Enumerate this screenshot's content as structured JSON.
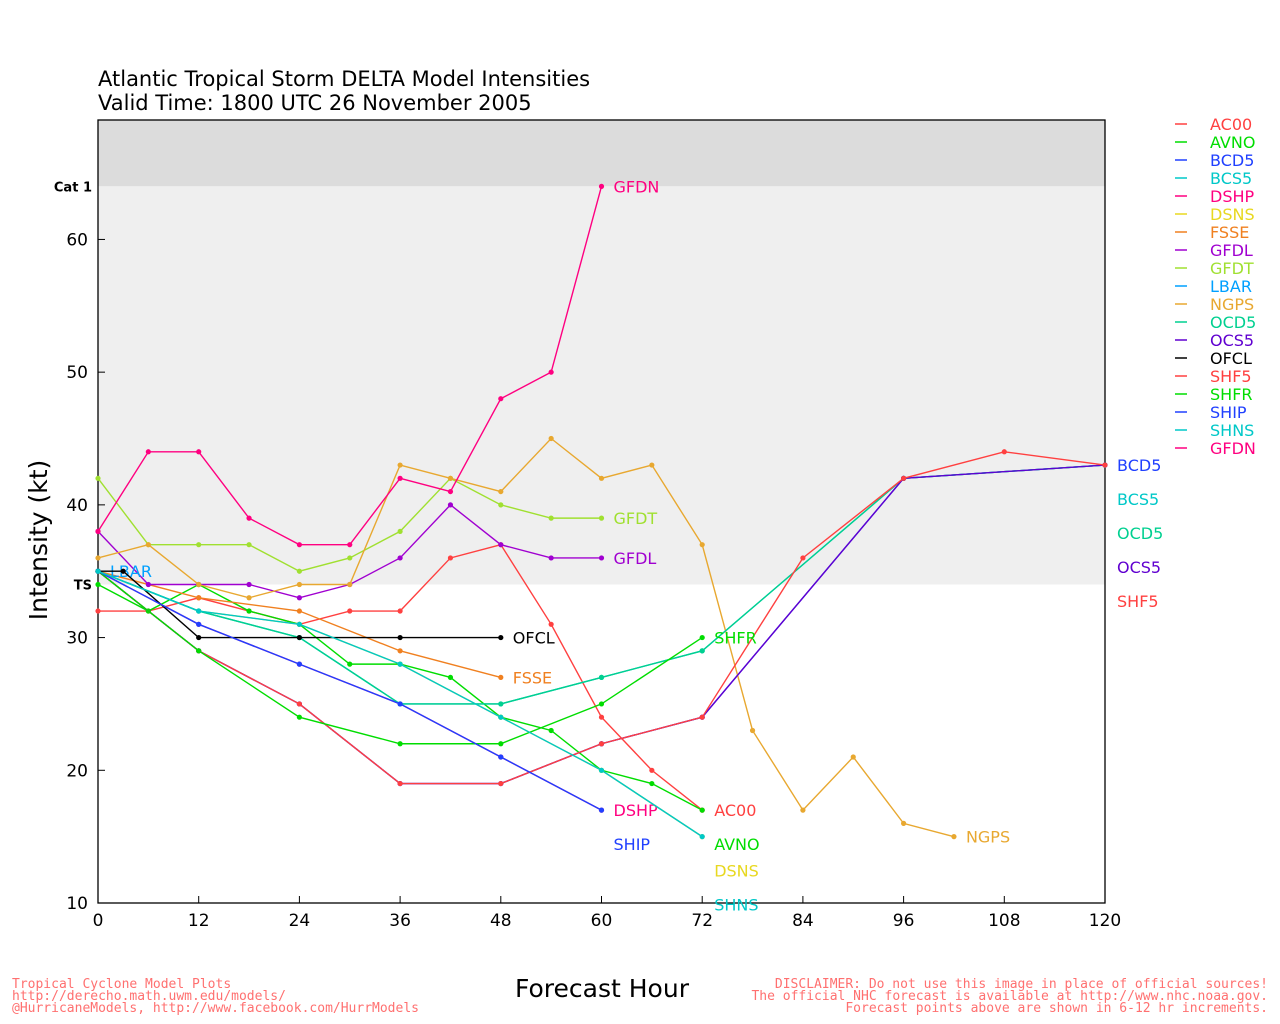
{
  "chart_data": {
    "type": "line",
    "title": "Atlantic Tropical Storm DELTA Model Intensities",
    "subtitle": "Valid Time: 1800 UTC 26 November 2005",
    "xlabel": "Forecast Hour",
    "ylabel": "Intensity (kt)",
    "xlim": [
      0,
      120
    ],
    "ylim": [
      10,
      69
    ],
    "xticks": [
      0,
      12,
      24,
      36,
      48,
      60,
      72,
      84,
      96,
      108,
      120
    ],
    "yticks": [
      10,
      20,
      30,
      40,
      50,
      60
    ],
    "thresholds": [
      {
        "label": "Cat 1",
        "value": 64
      },
      {
        "label": "TS",
        "value": 34
      }
    ],
    "legend_position": "right",
    "series": [
      {
        "name": "AC00",
        "color": "#ff4040",
        "x": [
          0,
          6,
          12,
          18,
          24,
          30,
          36,
          42,
          48,
          54,
          60,
          66,
          72
        ],
        "y": [
          32,
          32,
          33,
          32,
          31,
          32,
          32,
          36,
          37,
          31,
          24,
          20,
          17
        ]
      },
      {
        "name": "AVNO",
        "color": "#00dd00",
        "x": [
          0,
          6,
          12,
          18,
          24,
          30,
          36,
          42,
          48,
          54,
          60,
          66,
          72
        ],
        "y": [
          34,
          32,
          34,
          32,
          31,
          28,
          28,
          27,
          24,
          23,
          20,
          19,
          17
        ]
      },
      {
        "name": "BCD5",
        "color": "#2040ff",
        "x": [
          0,
          12,
          24,
          36,
          48,
          60,
          72,
          96,
          120
        ],
        "y": [
          35,
          29,
          25,
          19,
          19,
          22,
          24,
          42,
          43
        ]
      },
      {
        "name": "BCS5",
        "color": "#00c8c8",
        "x": [
          0,
          12,
          24,
          36,
          48,
          60,
          72,
          96,
          120
        ],
        "y": [
          35,
          32,
          30,
          25,
          25,
          27,
          29,
          42,
          43
        ]
      },
      {
        "name": "DSHP",
        "color": "#ff0080",
        "x": [
          0,
          12,
          24,
          36,
          48,
          60
        ],
        "y": [
          35,
          31,
          28,
          25,
          21,
          17
        ]
      },
      {
        "name": "DSNS",
        "color": "#e8d820",
        "x": [
          0,
          12,
          24,
          36,
          48,
          60,
          72
        ],
        "y": [
          35,
          32,
          31,
          28,
          24,
          20,
          15
        ]
      },
      {
        "name": "FSSE",
        "color": "#f08020",
        "x": [
          0,
          12,
          24,
          36,
          48
        ],
        "y": [
          35,
          33,
          32,
          29,
          27
        ]
      },
      {
        "name": "GFDL",
        "color": "#a000d0",
        "x": [
          0,
          6,
          12,
          18,
          24,
          30,
          36,
          42,
          48,
          54,
          60
        ],
        "y": [
          38,
          34,
          34,
          34,
          33,
          34,
          36,
          40,
          37,
          36,
          36
        ]
      },
      {
        "name": "GFDT",
        "color": "#a0e030",
        "x": [
          0,
          6,
          12,
          18,
          24,
          30,
          36,
          42,
          48,
          54,
          60
        ],
        "y": [
          42,
          37,
          37,
          37,
          35,
          36,
          38,
          42,
          40,
          39,
          39
        ]
      },
      {
        "name": "LBAR",
        "color": "#00a0ff",
        "x": [
          0
        ],
        "y": [
          35
        ]
      },
      {
        "name": "NGPS",
        "color": "#e8a830",
        "x": [
          0,
          6,
          12,
          18,
          24,
          30,
          36,
          42,
          48,
          54,
          60,
          66,
          72,
          78,
          84,
          90,
          96,
          102
        ],
        "y": [
          36,
          37,
          34,
          33,
          34,
          34,
          43,
          42,
          41,
          45,
          42,
          43,
          37,
          23,
          17,
          21,
          16,
          15
        ]
      },
      {
        "name": "OCD5",
        "color": "#00d090",
        "x": [
          0,
          12,
          24,
          36,
          48,
          60,
          72,
          96,
          120
        ],
        "y": [
          35,
          32,
          30,
          25,
          25,
          27,
          29,
          42,
          43
        ]
      },
      {
        "name": "OCS5",
        "color": "#6000d0",
        "x": [
          0,
          12,
          24,
          36,
          48,
          60,
          72,
          96,
          120
        ],
        "y": [
          35,
          29,
          25,
          19,
          19,
          22,
          24,
          42,
          43
        ]
      },
      {
        "name": "OFCL",
        "color": "#000000",
        "x": [
          0,
          3,
          12,
          24,
          36,
          48
        ],
        "y": [
          35,
          35,
          30,
          30,
          30,
          30
        ]
      },
      {
        "name": "SHF5",
        "color": "#ff4040",
        "x": [
          0,
          12,
          24,
          36,
          48,
          60,
          72,
          84,
          96,
          108,
          120
        ],
        "y": [
          35,
          29,
          25,
          19,
          19,
          22,
          24,
          36,
          42,
          44,
          43
        ]
      },
      {
        "name": "SHFR",
        "color": "#00dd00",
        "x": [
          0,
          12,
          24,
          36,
          48,
          60,
          72
        ],
        "y": [
          35,
          29,
          24,
          22,
          22,
          25,
          30
        ]
      },
      {
        "name": "SHIP",
        "color": "#2040ff",
        "x": [
          0,
          12,
          24,
          36,
          48,
          60
        ],
        "y": [
          35,
          31,
          28,
          25,
          21,
          17
        ]
      },
      {
        "name": "SHNS",
        "color": "#00c8c8",
        "x": [
          0,
          12,
          24,
          36,
          48,
          60,
          72
        ],
        "y": [
          35,
          32,
          31,
          28,
          24,
          20,
          15
        ]
      },
      {
        "name": "GFDN",
        "color": "#ff0080",
        "x": [
          0,
          6,
          12,
          18,
          24,
          30,
          36,
          42,
          48,
          54,
          60
        ],
        "y": [
          38,
          44,
          44,
          39,
          37,
          37,
          42,
          41,
          48,
          50,
          64
        ]
      }
    ]
  },
  "footer": {
    "left": [
      "Tropical Cyclone Model Plots",
      "http://derecho.math.uwm.edu/models/",
      "@HurricaneModels, http://www.facebook.com/HurrModels"
    ],
    "right": [
      "DISCLAIMER: Do not use this image in place of official sources!",
      "The official NHC forecast is available at http://www.nhc.noaa.gov.",
      "Forecast points above are shown in 6-12 hr increments."
    ]
  }
}
